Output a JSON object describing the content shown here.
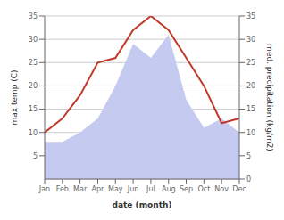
{
  "chart_data": {
    "type": "line",
    "categories": [
      "Jan",
      "Feb",
      "Mar",
      "Apr",
      "May",
      "Jun",
      "Jul",
      "Aug",
      "Sep",
      "Oct",
      "Nov",
      "Dec"
    ],
    "series": [
      {
        "type": "area",
        "axis": "y2",
        "color": "#c5caf0",
        "values": [
          8,
          8,
          10,
          13,
          20,
          29,
          26,
          31,
          17,
          11,
          13,
          10
        ]
      },
      {
        "type": "line",
        "color": "#c0392b",
        "values": [
          10,
          13,
          18,
          25,
          26,
          32,
          35,
          32,
          26,
          20,
          12,
          13
        ]
      }
    ],
    "xlabel": "date (month)",
    "ylabel": "max temp (C)",
    "y2label": "med. precipitation (kg/m2)",
    "ylim": [
      0,
      35
    ],
    "yticks": [
      5,
      10,
      15,
      20,
      25,
      30,
      35
    ],
    "y2lim": [
      0,
      35
    ],
    "y2ticks": [
      0,
      5,
      10,
      15,
      20,
      25,
      30,
      35
    ],
    "grid": true
  }
}
